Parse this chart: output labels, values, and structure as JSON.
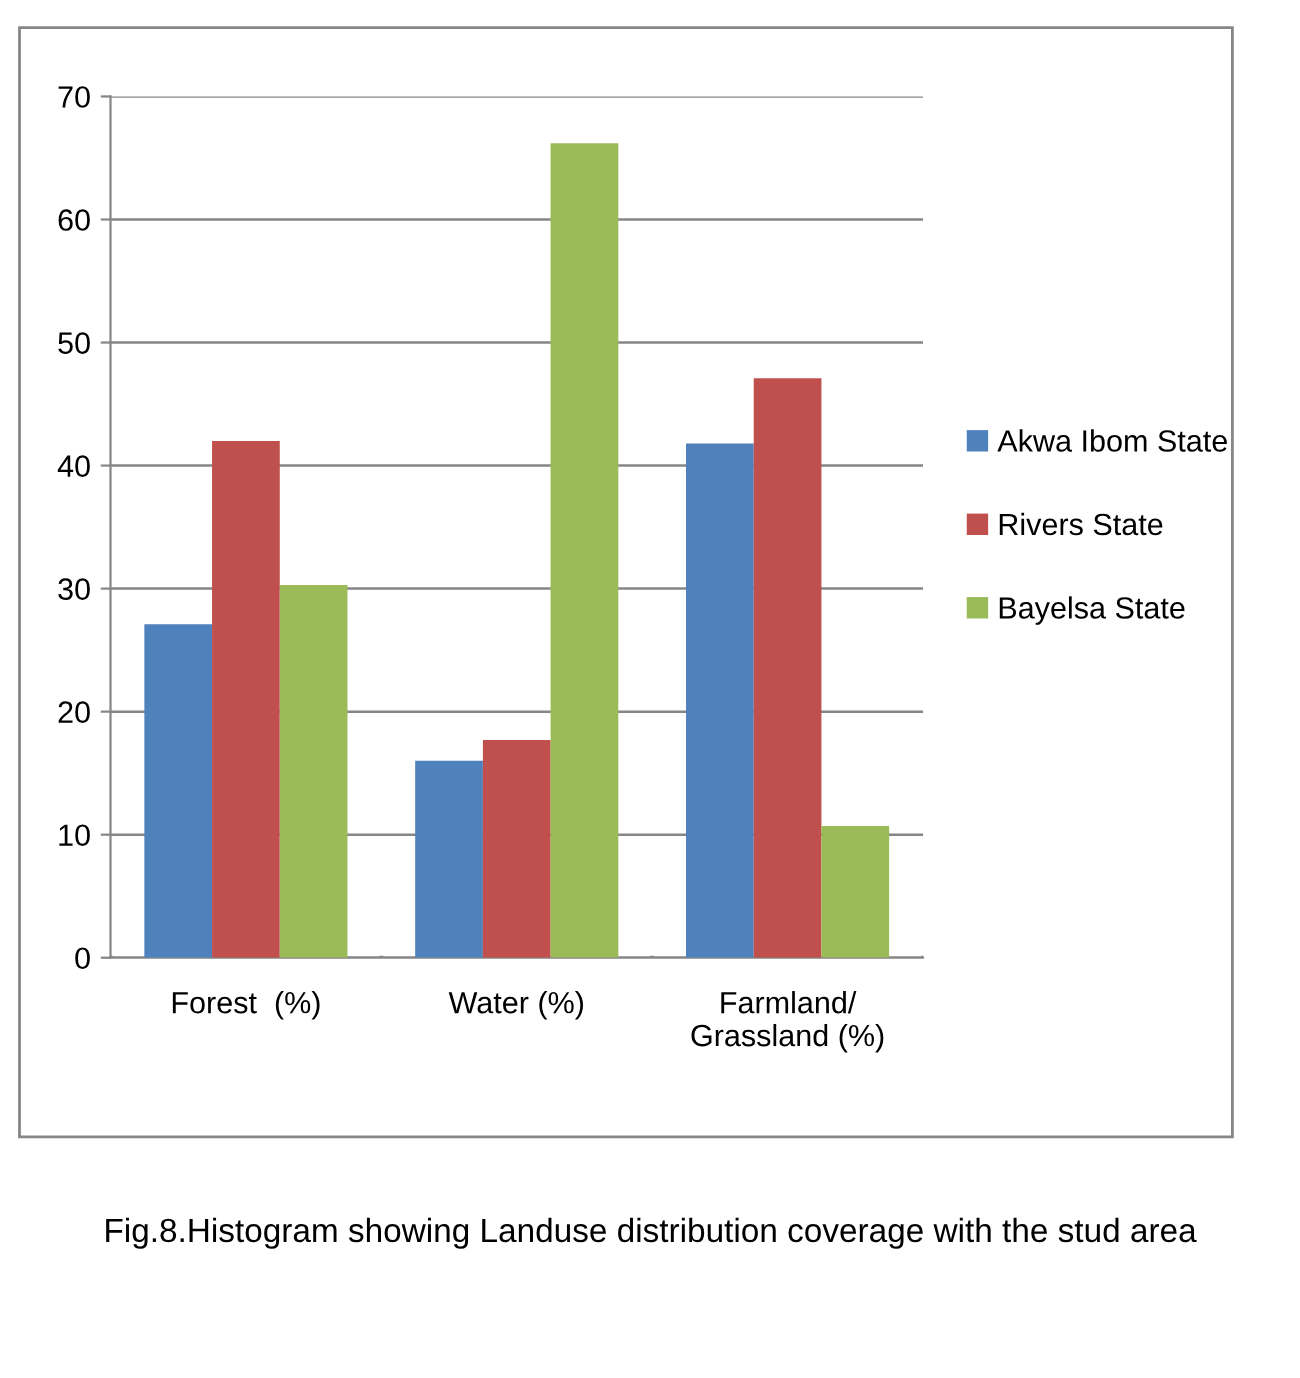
{
  "chart_data": {
    "type": "bar",
    "categories": [
      "Forest  (%)",
      "Water (%)",
      "Farmland/\nGrassland (%)"
    ],
    "series": [
      {
        "name": "Akwa Ibom State",
        "color": "#4f81bd",
        "values": [
          27.1,
          16.0,
          41.8
        ]
      },
      {
        "name": "Rivers State",
        "color": "#c0504d",
        "values": [
          42.0,
          17.7,
          47.1
        ]
      },
      {
        "name": "Bayelsa State",
        "color": "#9bbb59",
        "values": [
          30.3,
          66.2,
          10.7
        ]
      }
    ],
    "ylim": [
      0,
      70
    ],
    "yticks": [
      0,
      10,
      20,
      30,
      40,
      50,
      60,
      70
    ],
    "grid": "y",
    "legend": "right",
    "annotations": [
      "Fig.8.Histogram showing Landuse distribution coverage with the stud area"
    ]
  }
}
